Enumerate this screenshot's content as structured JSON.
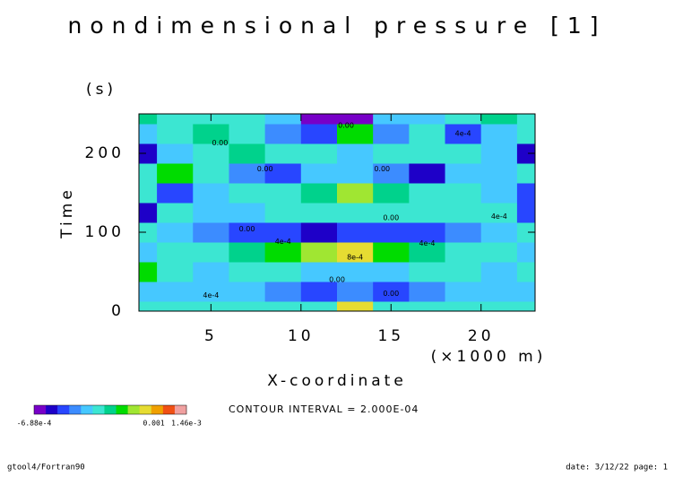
{
  "chart_data": {
    "type": "contour",
    "title": "nondimensional pressure [1]",
    "y_unit": "(s)",
    "y_label": "Time",
    "x_label": "X-coordinate",
    "x_unit": "(×1000 m)",
    "contour_interval": "CONTOUR INTERVAL = 2.000E-04",
    "footer_left": "gtool4/Fortran90",
    "footer_right": "date: 3/12/22 page: 1",
    "xlim": [
      1,
      23
    ],
    "ylim": [
      0,
      250
    ],
    "xticks": [
      5,
      10,
      15,
      20
    ],
    "yticks": [
      0,
      100,
      200
    ],
    "x": [
      1,
      3,
      5,
      7,
      9,
      11,
      13,
      15,
      17,
      19,
      21,
      23
    ],
    "y": [
      0,
      25,
      50,
      75,
      100,
      125,
      150,
      175,
      200,
      225,
      250
    ],
    "z": [
      [
        0.0002,
        0.0002,
        0.0002,
        0.0002,
        0.0002,
        0.0003,
        0.0009,
        0.0003,
        0.0002,
        0.0002,
        0.0002,
        0.0002
      ],
      [
        0.0001,
        0.0001,
        0.0001,
        0,
        -0.0001,
        -0.0002,
        -0.0001,
        -0.0002,
        -0.0001,
        0,
        0.0001,
        0.0001
      ],
      [
        0.0005,
        0.0002,
        0.0001,
        0.0002,
        0.0002,
        0.0001,
        0,
        0.0001,
        0.0002,
        0.0002,
        0.0001,
        0.0003
      ],
      [
        0.0001,
        0.0002,
        0.0003,
        0.0004,
        0.0005,
        0.0007,
        0.0008,
        0.0006,
        0.0004,
        0.0003,
        0.0002,
        0.0001
      ],
      [
        0.0003,
        0,
        -0.0001,
        -0.0002,
        -0.0002,
        -0.0004,
        -0.0003,
        -0.0002,
        -0.0002,
        -0.0001,
        0,
        0.0003
      ],
      [
        -0.0004,
        0.0002,
        0.0001,
        0.0001,
        0.0002,
        0.0003,
        0.0002,
        0.0002,
        0.0002,
        0.0003,
        0.0002,
        -0.0003
      ],
      [
        0.0002,
        -0.0003,
        0.0001,
        0.0003,
        0.0003,
        0.0004,
        0.0007,
        0.0004,
        0.0003,
        0.0002,
        0.0001,
        -0.0003
      ],
      [
        0.0003,
        0.0005,
        0.0002,
        -0.0001,
        -0.0002,
        0,
        0,
        -0.0001,
        -0.0004,
        0,
        0.0001,
        0.0003
      ],
      [
        -0.0005,
        0,
        0.0002,
        0.0004,
        0.0003,
        0.0002,
        0.0001,
        0.0003,
        0.0003,
        0.0002,
        0,
        -0.0004
      ],
      [
        0.0001,
        0.0002,
        0.0004,
        0.0003,
        -0.0001,
        -0.0002,
        0.0005,
        -0.0001,
        0.0002,
        -0.0002,
        0.0001,
        0.0002
      ],
      [
        0.0004,
        0.0003,
        0.0002,
        0.0002,
        0.0001,
        -0.0006,
        -0.0006,
        0.0001,
        0.0001,
        0.0003,
        0.0004,
        0.0003
      ]
    ],
    "colors": [
      "#7800c8",
      "#1e00c8",
      "#2846ff",
      "#3c8cff",
      "#46c8ff",
      "#3ce6d2",
      "#00d28c",
      "#00dc00",
      "#a0e632",
      "#e6dc32",
      "#f0a000",
      "#f05014",
      "#f0a0a0"
    ],
    "colorbar_lim": [
      -0.000688,
      0.00146
    ],
    "colorbar_ticks": [
      {
        "value": -0.000688,
        "label": "-6.88e-4"
      },
      {
        "value": 0.001,
        "label": "0.001"
      },
      {
        "value": 0.00146,
        "label": "1.46e-3"
      }
    ],
    "contour_labels": [
      {
        "x": 5.5,
        "y": 213,
        "label": "0.00"
      },
      {
        "x": 8,
        "y": 180,
        "label": "0.00"
      },
      {
        "x": 14.5,
        "y": 180,
        "label": "0.00"
      },
      {
        "x": 12.5,
        "y": 235,
        "label": "0.00"
      },
      {
        "x": 15,
        "y": 118,
        "label": "0.00"
      },
      {
        "x": 7,
        "y": 104,
        "label": "0.00"
      },
      {
        "x": 12,
        "y": 40,
        "label": "0.00"
      },
      {
        "x": 15,
        "y": 22,
        "label": "0.00"
      },
      {
        "x": 13,
        "y": 68,
        "label": "8e-4"
      },
      {
        "x": 9,
        "y": 88,
        "label": "4e-4"
      },
      {
        "x": 17,
        "y": 86,
        "label": "4e-4"
      },
      {
        "x": 21,
        "y": 120,
        "label": "4e-4"
      },
      {
        "x": 5,
        "y": 20,
        "label": "4e-4"
      },
      {
        "x": 19,
        "y": 225,
        "label": "4e-4"
      }
    ]
  }
}
